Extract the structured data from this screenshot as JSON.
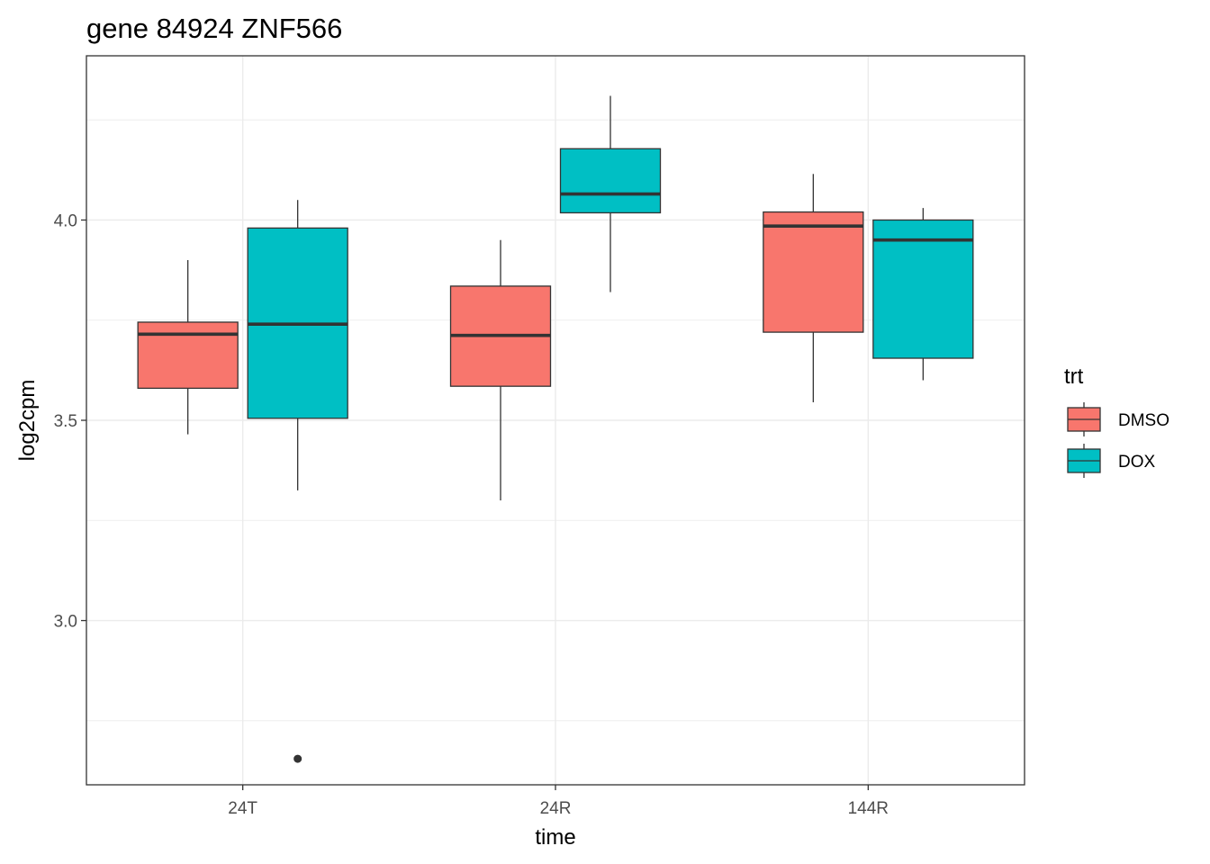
{
  "chart_data": {
    "type": "boxplot",
    "title": "gene 84924 ZNF566",
    "xlabel": "time",
    "ylabel": "log2cpm",
    "categories": [
      "24T",
      "24R",
      "144R"
    ],
    "ylim": [
      2.59,
      4.41
    ],
    "y_ticks": [
      3.0,
      3.5,
      4.0
    ],
    "y_tick_labels": [
      "3.0",
      "3.5",
      "4.0"
    ],
    "grid": true,
    "legend": {
      "title": "trt",
      "position": "right",
      "entries": [
        "DMSO",
        "DOX"
      ]
    },
    "series": [
      {
        "name": "DMSO",
        "color": "#F8766D",
        "boxes": [
          {
            "category": "24T",
            "whisker_low": 3.465,
            "q1": 3.58,
            "median": 3.715,
            "q3": 3.745,
            "whisker_high": 3.9,
            "outliers": []
          },
          {
            "category": "24R",
            "whisker_low": 3.3,
            "q1": 3.585,
            "median": 3.712,
            "q3": 3.835,
            "whisker_high": 3.95,
            "outliers": []
          },
          {
            "category": "144R",
            "whisker_low": 3.545,
            "q1": 3.72,
            "median": 3.985,
            "q3": 4.02,
            "whisker_high": 4.115,
            "outliers": []
          }
        ]
      },
      {
        "name": "DOX",
        "color": "#00BFC4",
        "boxes": [
          {
            "category": "24T",
            "whisker_low": 3.325,
            "q1": 3.505,
            "median": 3.74,
            "q3": 3.98,
            "whisker_high": 4.05,
            "outliers": [
              2.655
            ]
          },
          {
            "category": "24R",
            "whisker_low": 3.82,
            "q1": 4.018,
            "median": 4.065,
            "q3": 4.178,
            "whisker_high": 4.31,
            "outliers": []
          },
          {
            "category": "144R",
            "whisker_low": 3.6,
            "q1": 3.655,
            "median": 3.95,
            "q3": 4.0,
            "whisker_high": 4.03,
            "outliers": []
          }
        ]
      }
    ]
  }
}
